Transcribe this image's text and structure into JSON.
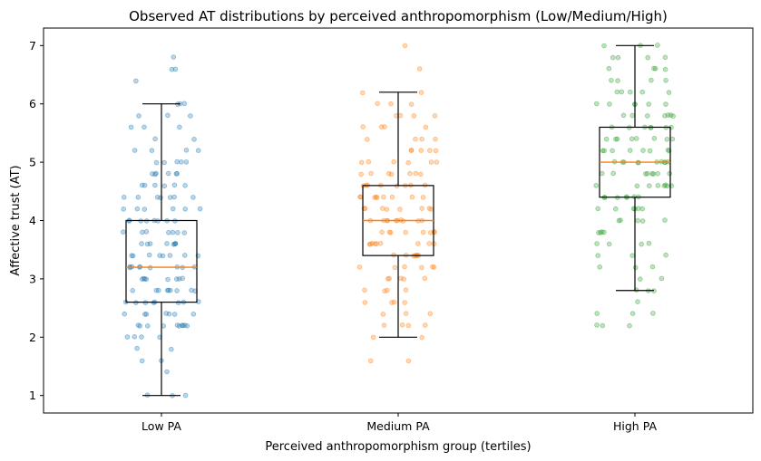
{
  "chart_data": {
    "type": "box",
    "title": "Observed AT distributions by perceived anthropomorphism (Low/Medium/High)",
    "xlabel": "Perceived anthropomorphism group (tertiles)",
    "ylabel": "Affective trust (AT)",
    "ylim": [
      0.7,
      7.3
    ],
    "yticks": [
      1,
      2,
      3,
      4,
      5,
      6,
      7
    ],
    "categories": [
      "Low PA",
      "Medium PA",
      "High PA"
    ],
    "grid": false,
    "series": [
      {
        "name": "Low PA",
        "color": "#1f77b4",
        "whisker_low": 1.0,
        "q1": 2.6,
        "median": 3.2,
        "q3": 4.0,
        "whisker_high": 6.0,
        "points": [
          6.8,
          6.6,
          6.6,
          6.4,
          6.0,
          6.0,
          6.0,
          5.8,
          5.8,
          5.8,
          5.6,
          5.6,
          5.6,
          5.4,
          5.4,
          5.2,
          5.2,
          5.2,
          5.2,
          5.0,
          5.0,
          5.0,
          5.0,
          5.0,
          4.8,
          4.8,
          4.8,
          4.8,
          4.8,
          4.8,
          4.6,
          4.6,
          4.6,
          4.6,
          4.6,
          4.6,
          4.4,
          4.4,
          4.4,
          4.4,
          4.4,
          4.4,
          4.4,
          4.2,
          4.2,
          4.2,
          4.2,
          4.2,
          4.2,
          4.0,
          4.0,
          4.0,
          4.0,
          4.0,
          4.0,
          4.0,
          4.0,
          3.8,
          3.8,
          3.8,
          3.8,
          3.8,
          3.8,
          3.8,
          3.6,
          3.6,
          3.6,
          3.6,
          3.6,
          3.6,
          3.6,
          3.6,
          3.4,
          3.4,
          3.4,
          3.4,
          3.4,
          3.4,
          3.4,
          3.4,
          3.2,
          3.2,
          3.2,
          3.2,
          3.2,
          3.2,
          3.2,
          3.2,
          3.2,
          3.0,
          3.0,
          3.0,
          3.0,
          3.0,
          3.0,
          3.0,
          3.0,
          2.8,
          2.8,
          2.8,
          2.8,
          2.8,
          2.8,
          2.8,
          2.8,
          2.8,
          2.6,
          2.6,
          2.6,
          2.6,
          2.6,
          2.6,
          2.6,
          2.6,
          2.4,
          2.4,
          2.4,
          2.4,
          2.4,
          2.4,
          2.4,
          2.2,
          2.2,
          2.2,
          2.2,
          2.2,
          2.2,
          2.2,
          2.2,
          2.2,
          2.2,
          2.0,
          2.0,
          2.0,
          2.0,
          1.8,
          1.8,
          1.6,
          1.6,
          1.4,
          1.0,
          1.0,
          1.0
        ]
      },
      {
        "name": "Medium PA",
        "color": "#ff7f0e",
        "whisker_low": 2.0,
        "q1": 3.4,
        "median": 4.0,
        "q3": 4.6,
        "whisker_high": 6.2,
        "points": [
          7.0,
          6.6,
          6.2,
          6.2,
          6.0,
          6.0,
          6.0,
          5.8,
          5.8,
          5.8,
          5.8,
          5.6,
          5.6,
          5.6,
          5.6,
          5.4,
          5.4,
          5.4,
          5.4,
          5.2,
          5.2,
          5.2,
          5.2,
          5.2,
          5.0,
          5.0,
          5.0,
          5.0,
          5.0,
          5.0,
          4.8,
          4.8,
          4.8,
          4.8,
          4.8,
          4.8,
          4.8,
          4.6,
          4.6,
          4.6,
          4.6,
          4.6,
          4.6,
          4.6,
          4.6,
          4.4,
          4.4,
          4.4,
          4.4,
          4.4,
          4.4,
          4.4,
          4.4,
          4.4,
          4.2,
          4.2,
          4.2,
          4.2,
          4.2,
          4.2,
          4.2,
          4.2,
          4.0,
          4.0,
          4.0,
          4.0,
          4.0,
          4.0,
          4.0,
          4.0,
          4.0,
          4.0,
          3.8,
          3.8,
          3.8,
          3.8,
          3.8,
          3.8,
          3.8,
          3.8,
          3.6,
          3.6,
          3.6,
          3.6,
          3.6,
          3.6,
          3.6,
          3.6,
          3.6,
          3.4,
          3.4,
          3.4,
          3.4,
          3.4,
          3.4,
          3.4,
          3.2,
          3.2,
          3.2,
          3.2,
          3.2,
          3.2,
          3.0,
          3.0,
          3.0,
          3.0,
          3.0,
          2.8,
          2.8,
          2.8,
          2.8,
          2.6,
          2.6,
          2.6,
          2.6,
          2.4,
          2.4,
          2.4,
          2.2,
          2.2,
          2.2,
          2.2,
          2.0,
          2.0,
          1.6,
          1.6
        ]
      },
      {
        "name": "High PA",
        "color": "#2ca02c",
        "whisker_low": 2.8,
        "q1": 4.4,
        "median": 5.0,
        "q3": 5.6,
        "whisker_high": 7.0,
        "points": [
          7.0,
          7.0,
          7.0,
          6.8,
          6.8,
          6.8,
          6.8,
          6.6,
          6.6,
          6.6,
          6.6,
          6.4,
          6.4,
          6.4,
          6.4,
          6.2,
          6.2,
          6.2,
          6.2,
          6.2,
          6.0,
          6.0,
          6.0,
          6.0,
          6.0,
          6.0,
          5.8,
          5.8,
          5.8,
          5.8,
          5.8,
          5.8,
          5.8,
          5.6,
          5.6,
          5.6,
          5.6,
          5.6,
          5.6,
          5.6,
          5.4,
          5.4,
          5.4,
          5.4,
          5.4,
          5.4,
          5.4,
          5.4,
          5.2,
          5.2,
          5.2,
          5.2,
          5.2,
          5.2,
          5.2,
          5.2,
          5.0,
          5.0,
          5.0,
          5.0,
          5.0,
          5.0,
          5.0,
          5.0,
          5.0,
          5.0,
          4.8,
          4.8,
          4.8,
          4.8,
          4.8,
          4.8,
          4.8,
          4.8,
          4.6,
          4.6,
          4.6,
          4.6,
          4.6,
          4.6,
          4.6,
          4.6,
          4.4,
          4.4,
          4.4,
          4.4,
          4.4,
          4.4,
          4.4,
          4.2,
          4.2,
          4.2,
          4.2,
          4.2,
          4.2,
          4.0,
          4.0,
          4.0,
          4.0,
          4.0,
          3.8,
          3.8,
          3.8,
          3.8,
          3.6,
          3.6,
          3.6,
          3.6,
          3.4,
          3.4,
          3.4,
          3.2,
          3.2,
          3.2,
          3.0,
          3.0,
          2.8,
          2.8,
          2.8,
          2.6,
          2.4,
          2.4,
          2.4,
          2.2,
          2.2,
          2.2
        ]
      }
    ]
  }
}
